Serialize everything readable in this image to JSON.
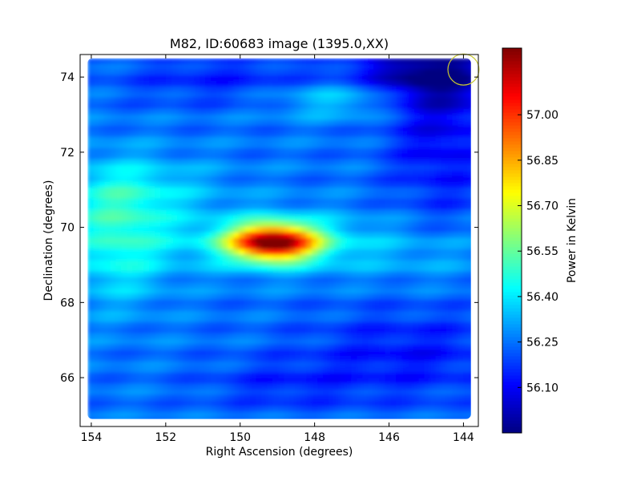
{
  "chart_data": {
    "type": "heatmap",
    "title": "M82, ID:60683 image (1395.0,XX)",
    "xlabel": "Right Ascension (degrees)",
    "ylabel": "Declination (degrees)",
    "xlim": [
      154.3,
      143.6
    ],
    "ylim": [
      64.7,
      74.6
    ],
    "x_inverted": true,
    "x_ticks": [
      154,
      152,
      150,
      148,
      146,
      144
    ],
    "y_ticks": [
      66,
      68,
      70,
      72,
      74
    ],
    "x_tick_labels": [
      "154",
      "152",
      "150",
      "148",
      "146",
      "144"
    ],
    "y_tick_labels": [
      "66",
      "68",
      "70",
      "72",
      "74"
    ],
    "map_extent": {
      "ra": [
        154.1,
        143.8
      ],
      "dec": [
        64.9,
        74.5
      ]
    },
    "colorbar": {
      "label": "Power in Kelvin",
      "colormap": "jet",
      "range": [
        55.95,
        57.22
      ],
      "ticks": [
        56.1,
        56.25,
        56.4,
        56.55,
        56.7,
        56.85,
        57.0
      ],
      "tick_labels": [
        "56.10",
        "56.25",
        "56.40",
        "56.55",
        "56.70",
        "56.85",
        "57.00"
      ]
    },
    "background_level": 56.25,
    "features": [
      {
        "ra": 149.1,
        "dec": 69.6,
        "sigma_ra": 0.8,
        "sigma_dec": 0.32,
        "amp": 0.86
      },
      {
        "ra": 149.1,
        "dec": 69.6,
        "sigma_ra": 1.8,
        "sigma_dec": 0.55,
        "amp": 0.2
      },
      {
        "ra": 153.3,
        "dec": 69.8,
        "sigma_ra": 1.0,
        "sigma_dec": 1.2,
        "amp": 0.22
      },
      {
        "ra": 152.5,
        "dec": 71.0,
        "sigma_ra": 1.6,
        "sigma_dec": 0.6,
        "amp": 0.1
      },
      {
        "ra": 147.2,
        "dec": 73.4,
        "sigma_ra": 1.3,
        "sigma_dec": 0.35,
        "amp": 0.15
      },
      {
        "ra": 145.0,
        "dec": 69.3,
        "sigma_ra": 1.5,
        "sigma_dec": 0.6,
        "amp": 0.07
      },
      {
        "ra": 145.0,
        "dec": 74.1,
        "sigma_ra": 1.4,
        "sigma_dec": 0.6,
        "amp": -0.25
      },
      {
        "ra": 144.6,
        "dec": 72.5,
        "sigma_ra": 1.0,
        "sigma_dec": 1.6,
        "amp": -0.15
      },
      {
        "ra": 145.5,
        "dec": 66.6,
        "sigma_ra": 2.0,
        "sigma_dec": 0.9,
        "amp": -0.12
      },
      {
        "ra": 149.0,
        "dec": 65.8,
        "sigma_ra": 1.5,
        "sigma_dec": 0.5,
        "amp": -0.08
      },
      {
        "ra": 150.5,
        "dec": 74.0,
        "sigma_ra": 2.0,
        "sigma_dec": 0.5,
        "amp": -0.1
      }
    ],
    "marker": {
      "shape": "circle",
      "ra": 144.0,
      "dec": 74.2,
      "radius_deg": 0.35,
      "color": "#c8c832"
    }
  }
}
